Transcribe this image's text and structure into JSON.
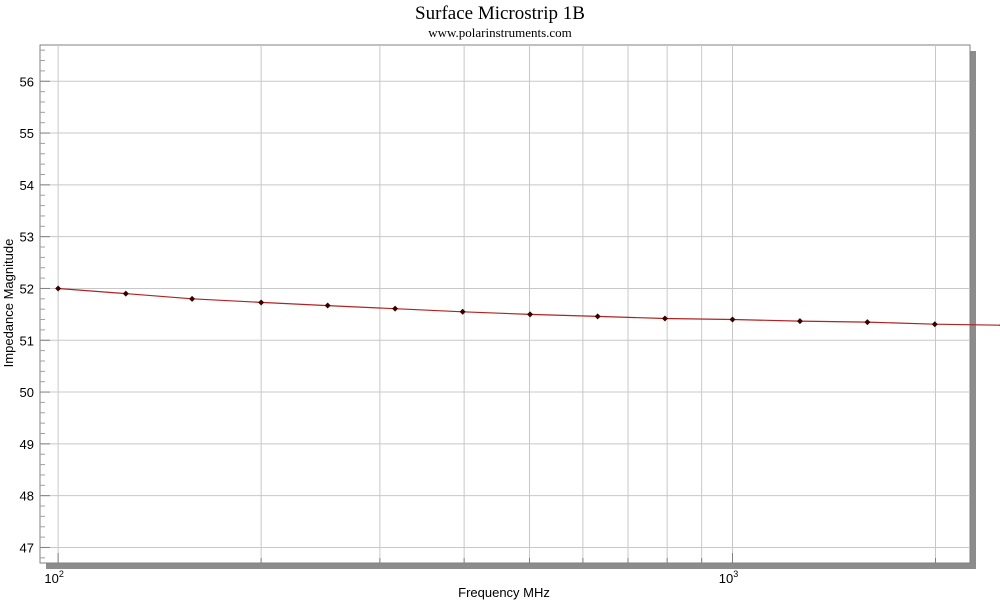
{
  "chart_data": {
    "type": "line",
    "title": "Surface Microstrip 1B",
    "subtitle": "www.polarinstruments.com",
    "xlabel": "Frequency MHz",
    "ylabel": "Impedance Magnitude",
    "x_scale": "log",
    "xlim": [
      94,
      2250
    ],
    "ylim": [
      46.7,
      56.7
    ],
    "grid": true,
    "y_ticks": [
      47,
      48,
      49,
      50,
      51,
      52,
      53,
      54,
      55,
      56
    ],
    "x_ticks": [
      {
        "value": 100,
        "base": "10",
        "exp": "2"
      },
      {
        "value": 1000,
        "base": "10",
        "exp": "3"
      }
    ],
    "colors": {
      "line": "#b22222",
      "marker": "#3a0000",
      "grid": "#c8c8c8",
      "shadow": "#8c8c8c"
    },
    "series": [
      {
        "x": [
          100,
          126,
          158,
          200,
          251,
          316,
          398,
          501,
          631,
          794,
          1000,
          1259,
          1585,
          1995,
          2512
        ],
        "y": [
          52.0,
          51.9,
          51.8,
          51.73,
          51.67,
          51.61,
          51.55,
          51.5,
          51.46,
          51.42,
          51.4,
          51.37,
          51.35,
          51.31,
          51.29
        ]
      }
    ]
  }
}
